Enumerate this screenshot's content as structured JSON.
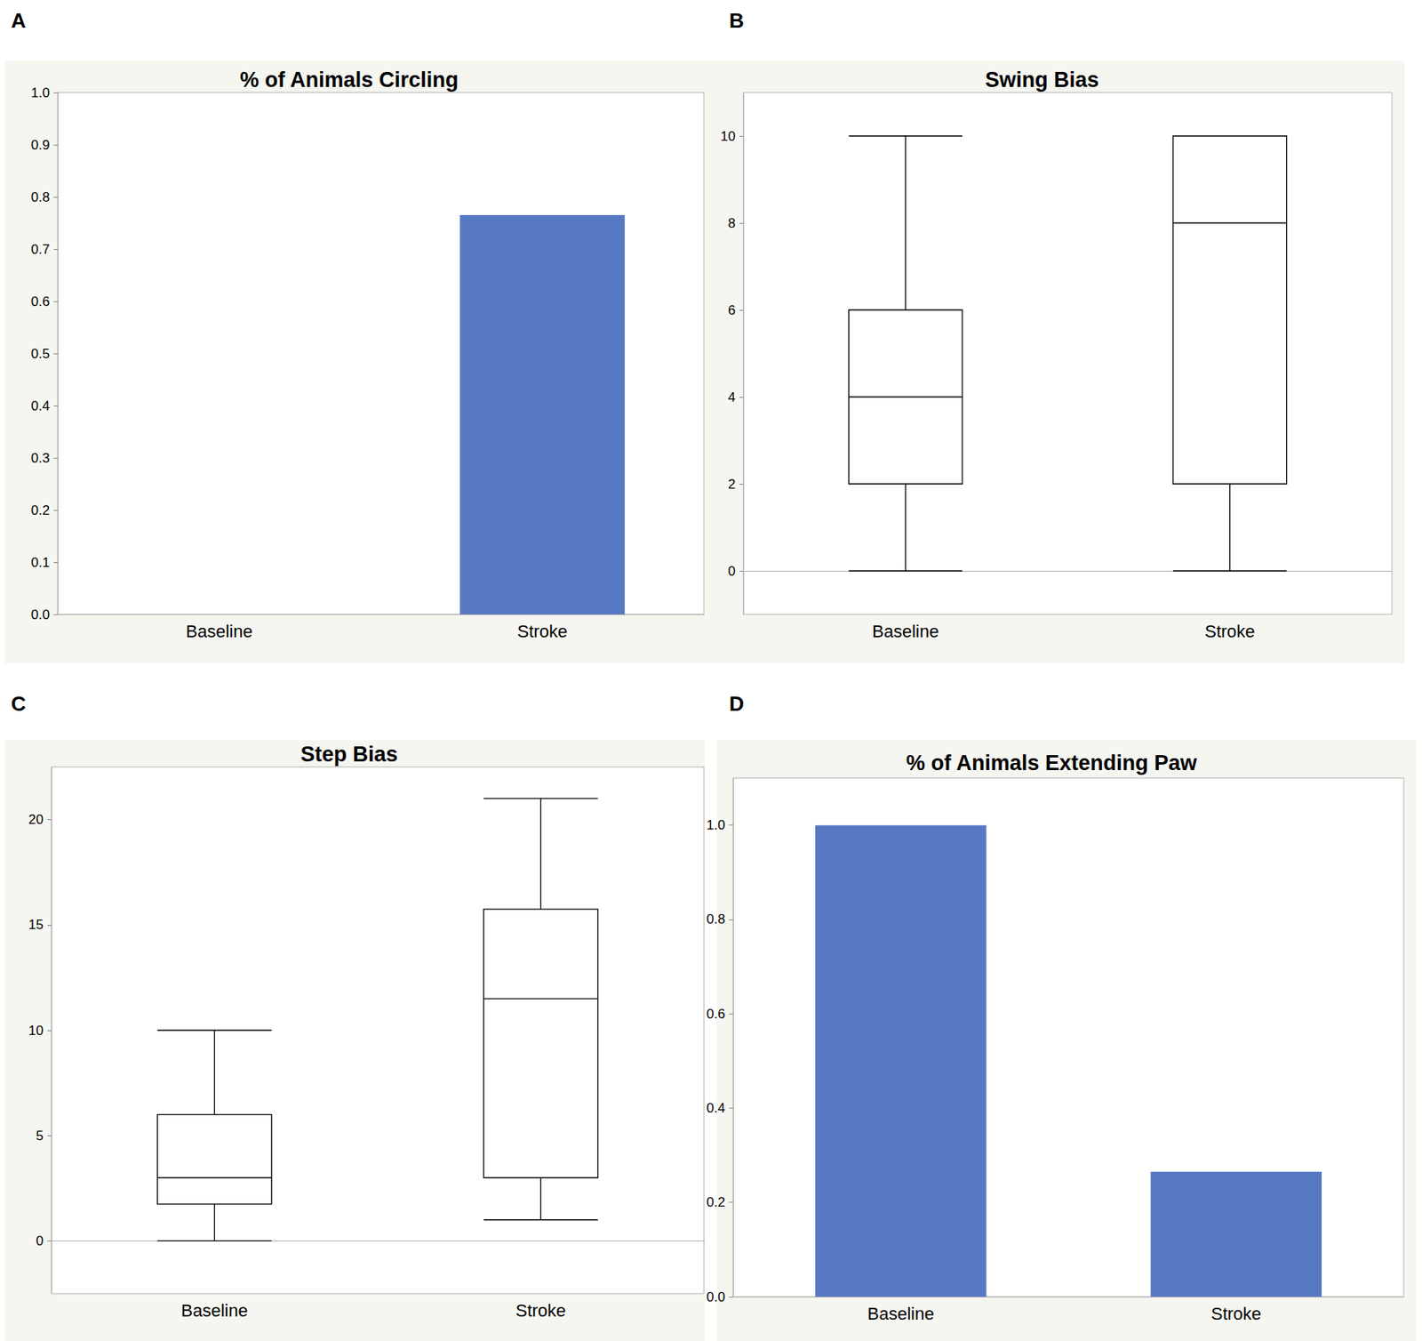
{
  "chart_data": [
    {
      "panel_label": "A",
      "type": "bar",
      "title": "% of Animals Circling",
      "categories": [
        "Baseline",
        "Stroke"
      ],
      "values": [
        0,
        0.765
      ],
      "color": "#5778c2",
      "ylim": [
        0,
        1
      ],
      "yticks": [
        {
          "value": 0,
          "label": "0.0"
        },
        0.1,
        0.2,
        0.3,
        0.4,
        0.5,
        0.6,
        0.7,
        0.8,
        0.9,
        {
          "value": 1,
          "label": "1.0"
        }
      ],
      "grid": false
    },
    {
      "panel_label": "B",
      "type": "boxplot",
      "title": "Swing Bias",
      "categories": [
        "Baseline",
        "Stroke"
      ],
      "values": [
        [
          0,
          2,
          4,
          6,
          10
        ],
        [
          0,
          2,
          8,
          10,
          10
        ]
      ],
      "color": "#000000",
      "ylim": [
        -1,
        11
      ],
      "yticks": [
        0,
        2,
        4,
        6,
        8,
        10
      ],
      "grid": false
    },
    {
      "panel_label": "C",
      "type": "boxplot",
      "title": "Step Bias",
      "categories": [
        "Baseline",
        "Stroke"
      ],
      "values": [
        [
          0,
          1.75,
          3,
          6,
          10
        ],
        [
          1,
          3,
          11.5,
          15.75,
          21
        ]
      ],
      "color": "#000000",
      "ylim": [
        -2.5,
        22.5
      ],
      "yticks": [
        0,
        5,
        10,
        15,
        20
      ],
      "grid": false
    },
    {
      "panel_label": "D",
      "type": "bar",
      "title": "% of Animals Extending Paw",
      "categories": [
        "Baseline",
        "Stroke"
      ],
      "values": [
        1,
        0.265
      ],
      "color": "#5778c2",
      "ylim": [
        0,
        1.1
      ],
      "yticks": [
        {
          "value": 0,
          "label": "0.0"
        },
        0.2,
        0.4,
        0.6,
        0.8,
        {
          "value": 1,
          "label": "1.0"
        }
      ],
      "grid": false
    }
  ]
}
